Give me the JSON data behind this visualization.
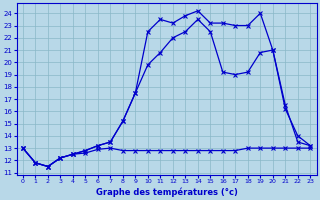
{
  "xlabel": "Graphe des températures (°c)",
  "bg_color": "#b8d8e8",
  "plot_bg_color": "#b8d8e8",
  "grid_color": "#8ab8c8",
  "line_color": "#0000cc",
  "axis_color": "#0000cc",
  "ylim": [
    10.8,
    24.8
  ],
  "xlim": [
    -0.5,
    23.5
  ],
  "yticks": [
    11,
    12,
    13,
    14,
    15,
    16,
    17,
    18,
    19,
    20,
    21,
    22,
    23,
    24
  ],
  "xticks": [
    0,
    1,
    2,
    3,
    4,
    5,
    6,
    7,
    8,
    9,
    10,
    11,
    12,
    13,
    14,
    15,
    16,
    17,
    18,
    19,
    20,
    21,
    22,
    23
  ],
  "line1_x": [
    0,
    1,
    2,
    3,
    4,
    5,
    6,
    7,
    8,
    9,
    10,
    11,
    12,
    13,
    14,
    15,
    16,
    17,
    18,
    19,
    20,
    21,
    22,
    23
  ],
  "line1_y": [
    13.0,
    11.8,
    11.5,
    12.2,
    12.5,
    12.6,
    12.9,
    13.0,
    12.8,
    12.8,
    12.8,
    12.8,
    12.8,
    12.8,
    12.8,
    12.8,
    12.8,
    12.8,
    13.0,
    13.0,
    13.0,
    13.0,
    13.0,
    13.0
  ],
  "line2_x": [
    0,
    1,
    2,
    3,
    4,
    5,
    6,
    7,
    8,
    9,
    10,
    11,
    12,
    13,
    14,
    15,
    16,
    17,
    18,
    19,
    20,
    21,
    22,
    23
  ],
  "line2_y": [
    13.0,
    11.8,
    11.5,
    12.2,
    12.5,
    12.8,
    13.2,
    13.5,
    15.2,
    17.5,
    22.5,
    23.5,
    23.2,
    23.8,
    24.2,
    23.2,
    23.2,
    23.0,
    23.0,
    24.0,
    21.0,
    16.2,
    14.0,
    13.2
  ],
  "line3_x": [
    0,
    1,
    2,
    3,
    4,
    5,
    6,
    7,
    8,
    9,
    10,
    11,
    12,
    13,
    14,
    15,
    16,
    17,
    18,
    19,
    20,
    21,
    22,
    23
  ],
  "line3_y": [
    13.0,
    11.8,
    11.5,
    12.2,
    12.5,
    12.8,
    13.2,
    13.5,
    15.2,
    17.5,
    19.8,
    20.8,
    22.0,
    22.5,
    23.5,
    22.5,
    19.2,
    19.0,
    19.2,
    20.8,
    21.0,
    16.5,
    13.5,
    13.2
  ]
}
